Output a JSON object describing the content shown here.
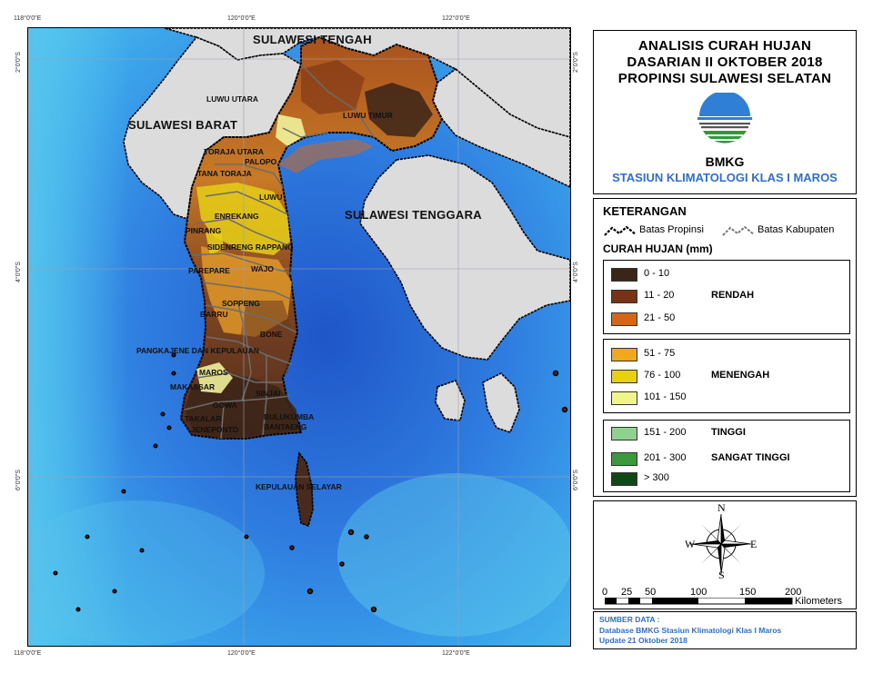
{
  "map": {
    "coords": {
      "top": [
        "118°0'0\"E",
        "120°0'0\"E",
        "122°0'0\"E"
      ],
      "bottom": [
        "118°0'0\"E",
        "120°0'0\"E",
        "122°0'0\"E"
      ],
      "left": [
        "2°0'0\"S",
        "4°0'0\"S",
        "6°0'0\"S"
      ],
      "right": [
        "2°0'0\"S",
        "4°0'0\"S",
        "6°0'0\"S"
      ]
    },
    "regions": {
      "sulteng": "SULAWESI TENGAH",
      "sulbar": "SULAWESI BARAT",
      "sultra": "SULAWESI TENGGARA"
    },
    "kabupaten": [
      "LUWU UTARA",
      "LUWU TIMUR",
      "TORAJA UTARA",
      "PALOPO",
      "TANA TORAJA",
      "LUWU",
      "ENREKANG",
      "PINRANG",
      "SIDENRENG RAPPANG",
      "PAREPARE",
      "WAJO",
      "SOPPENG",
      "BARRU",
      "BONE",
      "PANGKAJENE DAN KEPULAUAN",
      "MAROS",
      "MAKASSAR",
      "GOWA",
      "SINJAI",
      "TAKALAR",
      "BULUKUMBA",
      "JENEPONTO",
      "BANTAENG",
      "KEPULAUAN SELAYAR"
    ]
  },
  "title": {
    "line1": "ANALISIS CURAH HUJAN",
    "line2": "DASARIAN II OKTOBER 2018",
    "line3": "PROPINSI SULAWESI SELATAN",
    "agency": "BMKG",
    "station": "STASIUN KLIMATOLOGI KLAS I MAROS",
    "station_color": "#2e6fd1"
  },
  "legend": {
    "heading": "KETERANGAN",
    "batas_propinsi": "Batas Propinsi",
    "batas_kabupaten": "Batas Kabupaten",
    "curah_title": "CURAH HUJAN (mm)",
    "groups": [
      {
        "category": "RENDAH",
        "classes": [
          {
            "label": "0 - 10",
            "color": "#3b2418"
          },
          {
            "label": "11 - 20",
            "color": "#7a3214"
          },
          {
            "label": "21 - 50",
            "color": "#d4661a"
          }
        ]
      },
      {
        "category": "MENENGAH",
        "classes": [
          {
            "label": "51 - 75",
            "color": "#f0a81e"
          },
          {
            "label": "76 - 100",
            "color": "#e8d210"
          },
          {
            "label": "101 - 150",
            "color": "#f0f58a"
          }
        ]
      },
      {
        "category": "TINGGI",
        "classes": [
          {
            "label": "151 - 200",
            "color": "#8fd18f"
          }
        ]
      },
      {
        "category": "SANGAT TINGGI",
        "classes": [
          {
            "label": "201 - 300",
            "color": "#3c9a3c"
          },
          {
            "label": "> 300",
            "color": "#0f4a16"
          }
        ]
      }
    ]
  },
  "compass": {
    "n": "N",
    "s": "S",
    "e": "E",
    "w": "W"
  },
  "scale": {
    "ticks": [
      "0",
      "25",
      "50",
      "100",
      "150",
      "200"
    ],
    "unit": "Kilometers"
  },
  "source": {
    "heading": "SUMBER DATA :",
    "line1": "Database BMKG Stasiun Klimatologi Klas I Maros",
    "line2": "Update 21 Oktober 2018",
    "color": "#2e6fd1"
  }
}
